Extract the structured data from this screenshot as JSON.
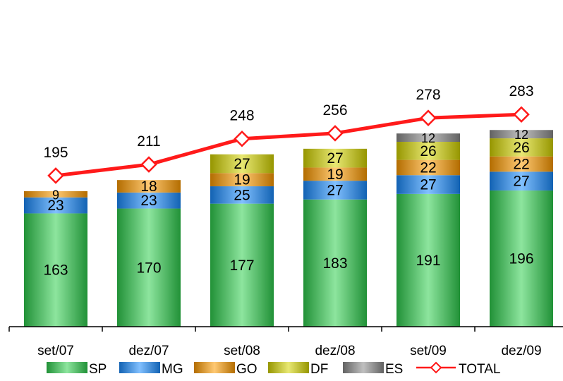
{
  "chart_data": {
    "type": "bar",
    "stacked": true,
    "categories": [
      "set/07",
      "dez/07",
      "set/08",
      "dez/08",
      "set/09",
      "dez/09"
    ],
    "series": [
      {
        "name": "SP",
        "values": [
          163,
          170,
          177,
          183,
          191,
          196
        ],
        "color": "#2fcf4f"
      },
      {
        "name": "MG",
        "values": [
          23,
          23,
          25,
          27,
          27,
          27
        ],
        "color": "#1a8cff"
      },
      {
        "name": "GO",
        "values": [
          9,
          18,
          19,
          19,
          22,
          22
        ],
        "color": "#ff9c00"
      },
      {
        "name": "DF",
        "values": [
          null,
          null,
          27,
          27,
          26,
          26
        ],
        "color": "#d6d600"
      },
      {
        "name": "ES",
        "values": [
          null,
          null,
          null,
          null,
          12,
          12
        ],
        "color": "#8c8c8c"
      }
    ],
    "total": {
      "name": "TOTAL",
      "values": [
        195,
        211,
        248,
        256,
        278,
        283
      ],
      "color": "#ff1a1a"
    },
    "ylim": [
      0,
      283
    ],
    "legend_position": "bottom",
    "grid": false,
    "title": "",
    "xlabel": "",
    "ylabel": ""
  }
}
